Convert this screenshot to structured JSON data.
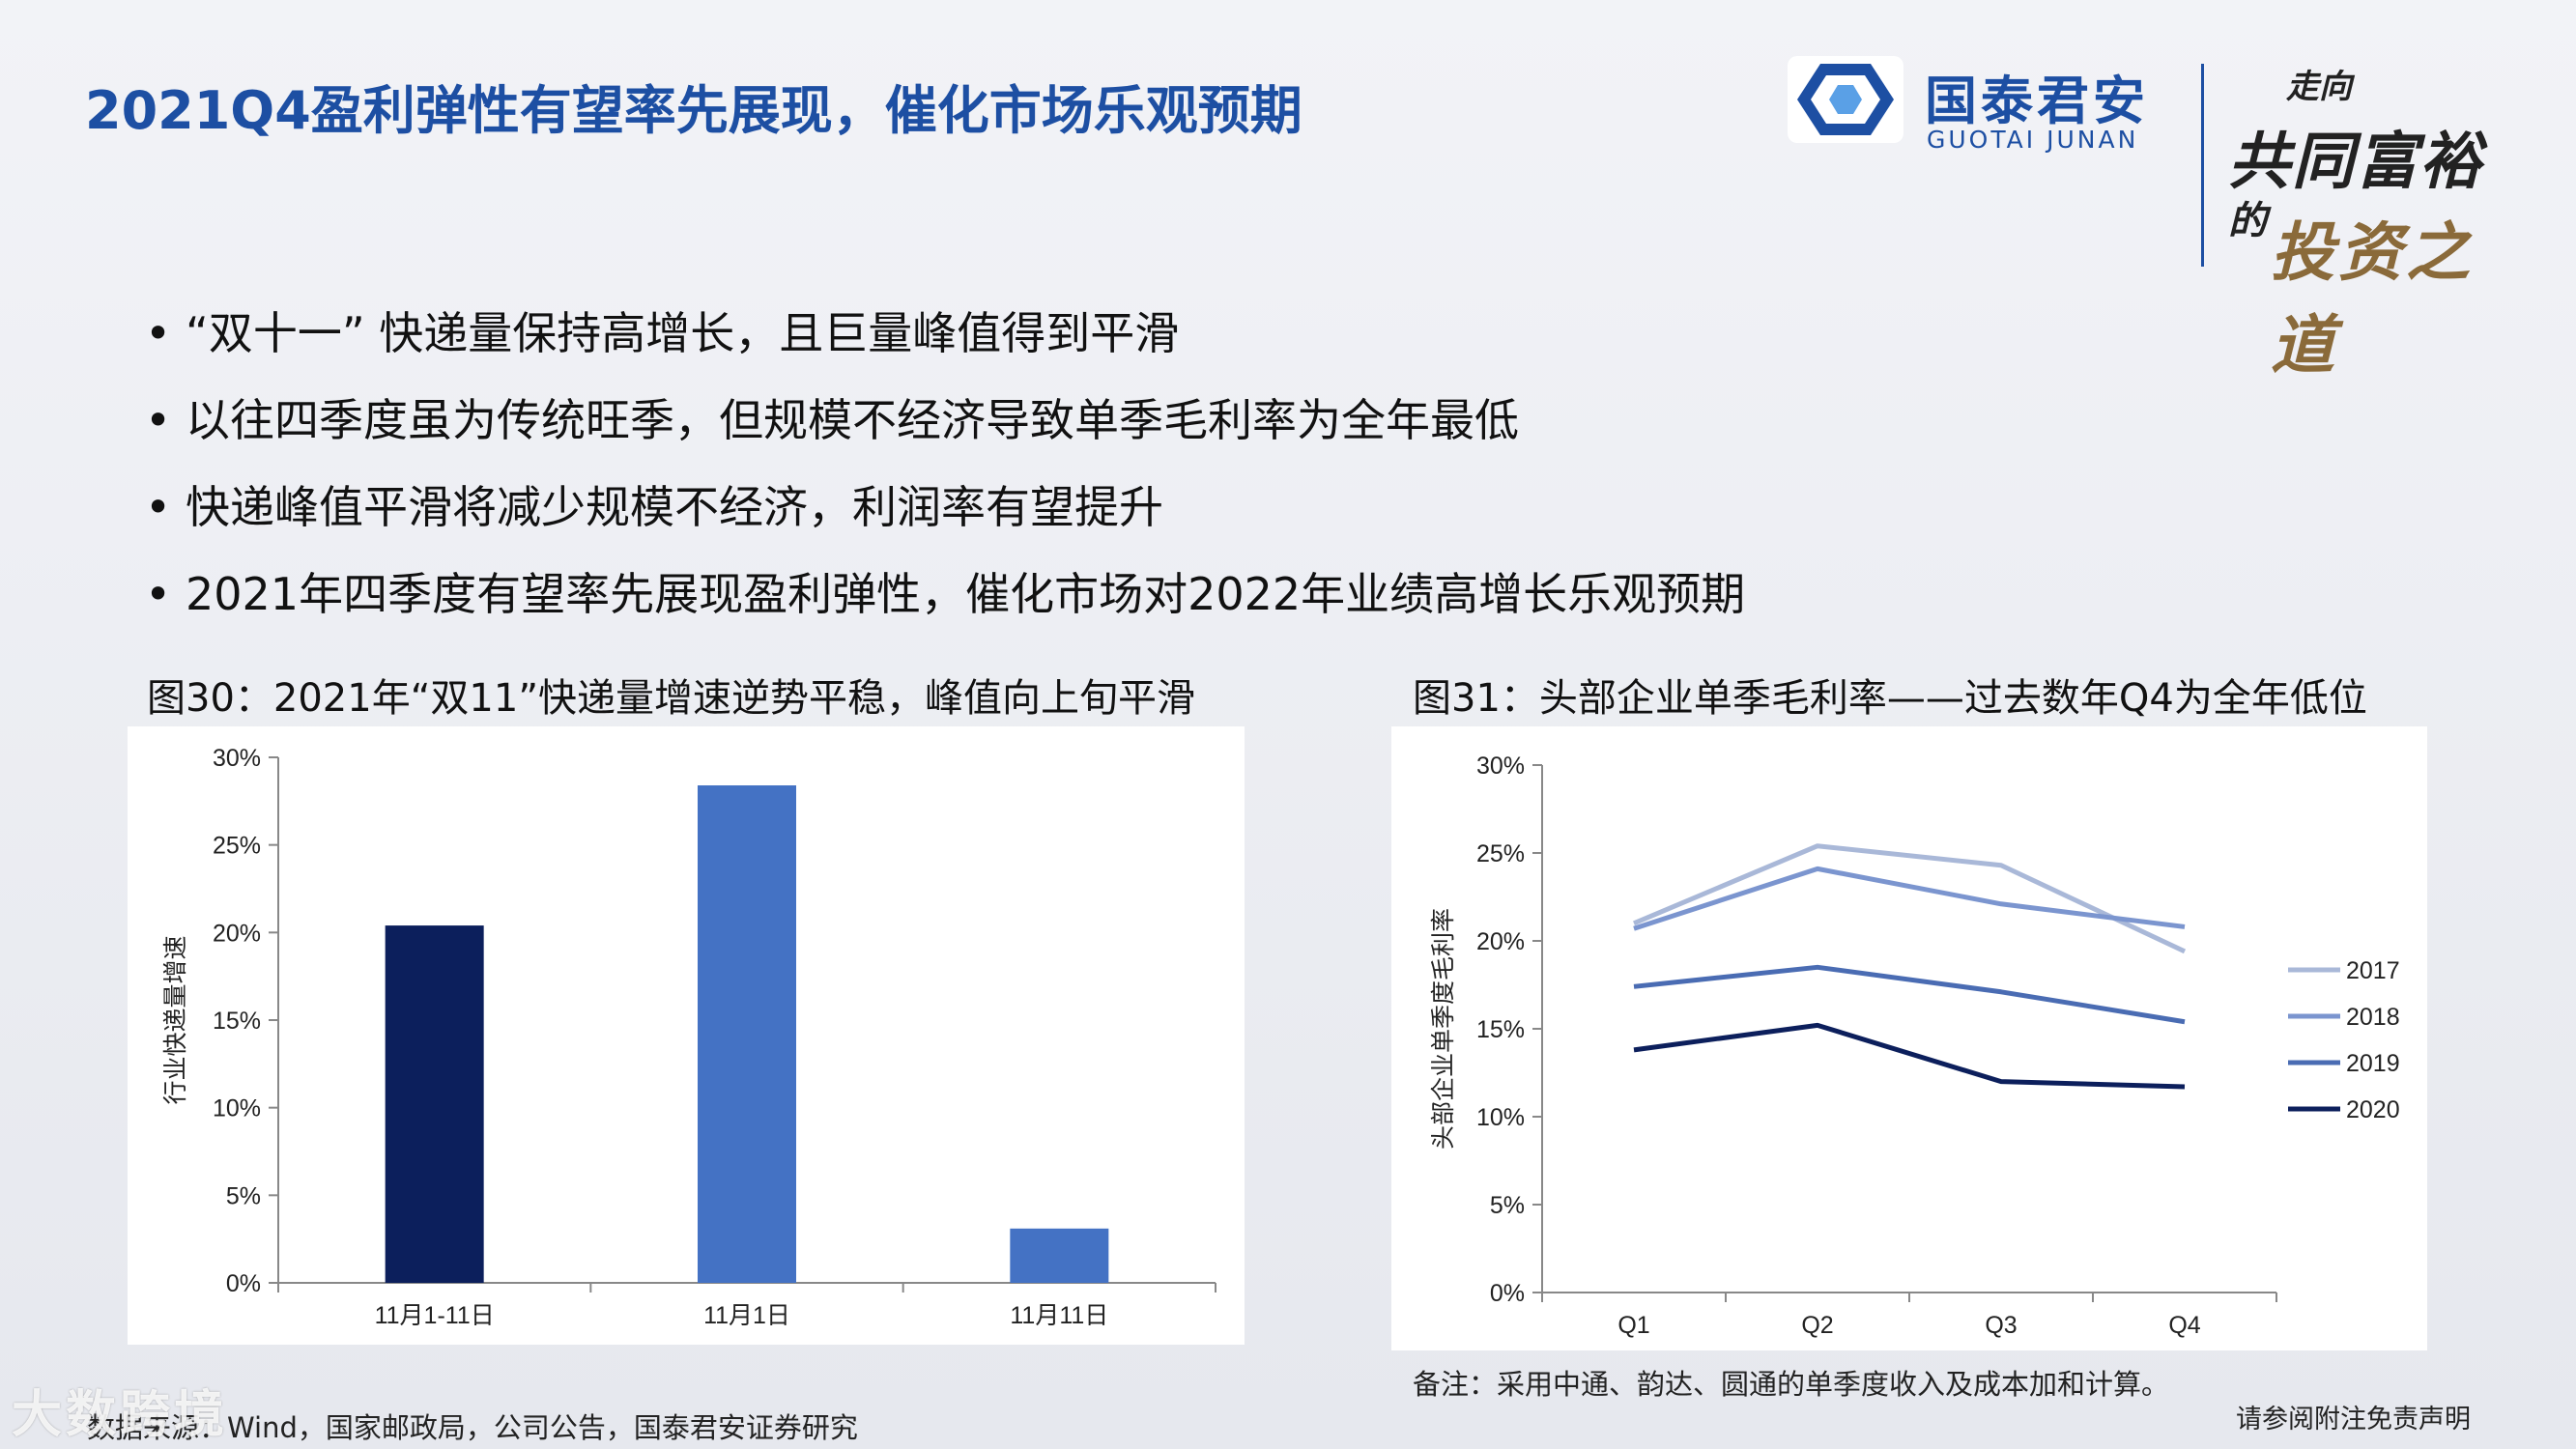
{
  "title": "2021Q4盈利弹性有望率先展现，催化市场乐观预期",
  "logo": {
    "cn": "国泰君安",
    "en": "GUOTAI JUNAN",
    "slogan_1": "走向",
    "slogan_2": "共同富裕",
    "slogan_3": "的",
    "slogan_4": "投资之道"
  },
  "bullets": [
    "“双十一” 快递量保持高增长，且巨量峰值得到平滑",
    "以往四季度虽为传统旺季，但规模不经济导致单季毛利率为全年最低",
    "快递峰值平滑将减少规模不经济，利润率有望提升",
    "2021年四季度有望率先展现盈利弹性，催化市场对2022年业绩高增长乐观预期"
  ],
  "figure30_title": "图30：2021年“双11”快递量增速逆势平稳，峰值向上旬平滑",
  "figure31_title": "图31：头部企业单季毛利率——过去数年Q4为全年低位",
  "note": "备注：采用中通、韵达、圆通的单季度收入及成本加和计算。",
  "source": "数据来源：Wind，国家邮政局，公司公告，国泰君安证券研究",
  "disclaimer": "请参阅附注免责声明",
  "watermark": "大数跨境",
  "chart_data": [
    {
      "type": "bar",
      "categories": [
        "11月1-11日",
        "11月1日",
        "11月11日"
      ],
      "values": [
        20.4,
        28.4,
        3.1
      ],
      "colors": [
        "#0c1f5c",
        "#4472c4",
        "#4472c4"
      ],
      "ylabel": "行业快递量增速",
      "ylim": [
        0,
        30
      ],
      "yticks": [
        "0%",
        "5%",
        "10%",
        "15%",
        "20%",
        "25%",
        "30%"
      ],
      "grid": false,
      "legend": "none"
    },
    {
      "type": "line",
      "categories": [
        "Q1",
        "Q2",
        "Q3",
        "Q4"
      ],
      "series": [
        {
          "name": "2017",
          "values": [
            21.0,
            25.4,
            24.3,
            19.4
          ],
          "color": "#a9b8d8"
        },
        {
          "name": "2018",
          "values": [
            20.7,
            24.1,
            22.1,
            20.8
          ],
          "color": "#7b95cf"
        },
        {
          "name": "2019",
          "values": [
            17.4,
            18.5,
            17.1,
            15.4
          ],
          "color": "#4a6cb3"
        },
        {
          "name": "2020",
          "values": [
            13.8,
            15.2,
            12.0,
            11.7
          ],
          "color": "#0c1f5c"
        }
      ],
      "ylabel": "头部企业单季度毛利率",
      "ylim": [
        0,
        30
      ],
      "yticks": [
        "0%",
        "5%",
        "10%",
        "15%",
        "20%",
        "25%",
        "30%"
      ],
      "grid": false,
      "legend": "right"
    }
  ]
}
